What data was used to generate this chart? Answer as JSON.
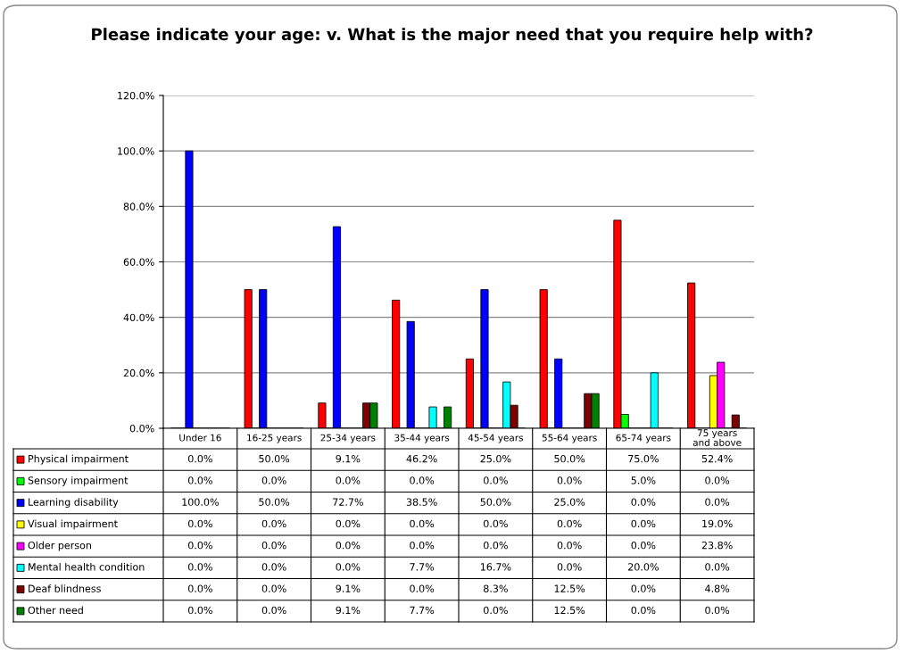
{
  "chart_data": {
    "type": "bar",
    "title": "Please indicate your age: v. What is the major need that you require help with?",
    "categories": [
      "Under 16",
      "16-25 years",
      "25-34 years",
      "35-44 years",
      "45-54 years",
      "55-64 years",
      "65-74 years",
      "75 years and above"
    ],
    "series": [
      {
        "name": "Physical impairment",
        "color": "#ff0000",
        "values": [
          0.0,
          50.0,
          9.1,
          46.2,
          25.0,
          50.0,
          75.0,
          52.4
        ],
        "value_labels": [
          "0.0%",
          "50.0%",
          "9.1%",
          "46.2%",
          "25.0%",
          "50.0%",
          "75.0%",
          "52.4%"
        ]
      },
      {
        "name": "Sensory impairment",
        "color": "#00ff00",
        "values": [
          0.0,
          0.0,
          0.0,
          0.0,
          0.0,
          0.0,
          5.0,
          0.0
        ],
        "value_labels": [
          "0.0%",
          "0.0%",
          "0.0%",
          "0.0%",
          "0.0%",
          "0.0%",
          "5.0%",
          "0.0%"
        ]
      },
      {
        "name": "Learning disability",
        "color": "#0000ff",
        "values": [
          100.0,
          50.0,
          72.7,
          38.5,
          50.0,
          25.0,
          0.0,
          0.0
        ],
        "value_labels": [
          "100.0%",
          "50.0%",
          "72.7%",
          "38.5%",
          "50.0%",
          "25.0%",
          "0.0%",
          "0.0%"
        ]
      },
      {
        "name": "Visual impairment",
        "color": "#ffff00",
        "values": [
          0.0,
          0.0,
          0.0,
          0.0,
          0.0,
          0.0,
          0.0,
          19.0
        ],
        "value_labels": [
          "0.0%",
          "0.0%",
          "0.0%",
          "0.0%",
          "0.0%",
          "0.0%",
          "0.0%",
          "19.0%"
        ]
      },
      {
        "name": "Older person",
        "color": "#ff00ff",
        "values": [
          0.0,
          0.0,
          0.0,
          0.0,
          0.0,
          0.0,
          0.0,
          23.8
        ],
        "value_labels": [
          "0.0%",
          "0.0%",
          "0.0%",
          "0.0%",
          "0.0%",
          "0.0%",
          "0.0%",
          "23.8%"
        ]
      },
      {
        "name": "Mental health condition",
        "color": "#00ffff",
        "values": [
          0.0,
          0.0,
          0.0,
          7.7,
          16.7,
          0.0,
          20.0,
          0.0
        ],
        "value_labels": [
          "0.0%",
          "0.0%",
          "0.0%",
          "7.7%",
          "16.7%",
          "0.0%",
          "20.0%",
          "0.0%"
        ]
      },
      {
        "name": "Deaf blindness",
        "color": "#800000",
        "values": [
          0.0,
          0.0,
          9.1,
          0.0,
          8.3,
          12.5,
          0.0,
          4.8
        ],
        "value_labels": [
          "0.0%",
          "0.0%",
          "9.1%",
          "0.0%",
          "8.3%",
          "12.5%",
          "0.0%",
          "4.8%"
        ]
      },
      {
        "name": "Other need",
        "color": "#008000",
        "values": [
          0.0,
          0.0,
          9.1,
          7.7,
          0.0,
          12.5,
          0.0,
          0.0
        ],
        "value_labels": [
          "0.0%",
          "0.0%",
          "9.1%",
          "7.7%",
          "0.0%",
          "12.5%",
          "0.0%",
          "0.0%"
        ]
      }
    ],
    "ylim": [
      0,
      120
    ],
    "yticks": [
      {
        "value": 0,
        "label": "0.0%"
      },
      {
        "value": 20,
        "label": "20.0%"
      },
      {
        "value": 40,
        "label": "40.0%"
      },
      {
        "value": 60,
        "label": "60.0%"
      },
      {
        "value": 80,
        "label": "80.0%"
      },
      {
        "value": 100,
        "label": "100.0%"
      },
      {
        "value": 120,
        "label": "120.0%"
      }
    ],
    "grid": "y",
    "legend": "bottom"
  }
}
